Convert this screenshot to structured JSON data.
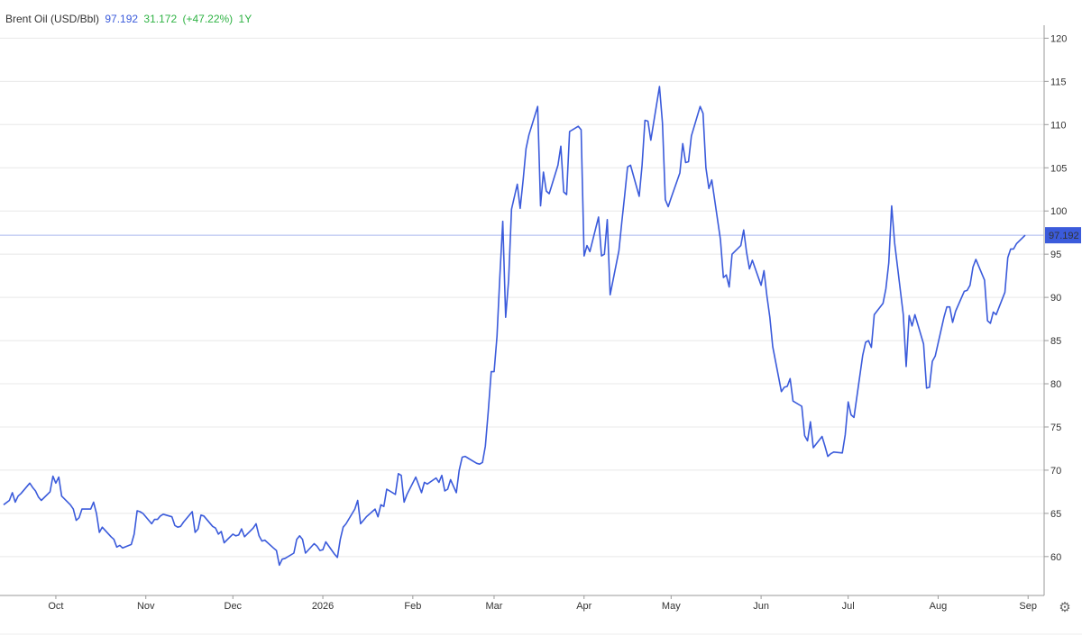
{
  "header": {
    "instrument": "Brent Oil (USD/Bbl)",
    "price": "97.192",
    "change": "31.172",
    "change_pct": "(+47.22%)",
    "period": "1Y"
  },
  "colors": {
    "line": "#3b5bdb",
    "grid": "#e8e8e8",
    "change_positive": "#2fb344",
    "price_tag_bg": "#3b5bdb"
  },
  "settings_icon": "gear-icon",
  "chart_data": {
    "type": "line",
    "title": "Brent Oil (USD/Bbl)",
    "xlabel": "",
    "ylabel": "",
    "ylim": [
      55.5,
      121.5
    ],
    "yticks": [
      60,
      65,
      70,
      75,
      80,
      85,
      90,
      95,
      100,
      105,
      110,
      115,
      120
    ],
    "x_ticks": [
      {
        "label": "Oct",
        "date": "2025-10-01"
      },
      {
        "label": "Nov",
        "date": "2025-11-01"
      },
      {
        "label": "Dec",
        "date": "2025-12-01"
      },
      {
        "label": "2026",
        "date": "2026-01-01"
      },
      {
        "label": "Feb",
        "date": "2026-02-01"
      },
      {
        "label": "Mar",
        "date": "2026-03-01"
      },
      {
        "label": "Apr",
        "date": "2026-04-01"
      },
      {
        "label": "May",
        "date": "2026-05-01"
      },
      {
        "label": "Jun",
        "date": "2026-06-01"
      },
      {
        "label": "Jul",
        "date": "2026-07-01"
      },
      {
        "label": "Aug",
        "date": "2026-08-01"
      },
      {
        "label": "Sep",
        "date": "2026-09-01"
      }
    ],
    "grid": true,
    "last_value": 97.192,
    "series": [
      {
        "points": [
          [
            "2025-09-13",
            66.0
          ],
          [
            "2025-09-15",
            66.5
          ],
          [
            "2025-09-16",
            67.4
          ],
          [
            "2025-09-17",
            66.3
          ],
          [
            "2025-09-18",
            67.0
          ],
          [
            "2025-09-19",
            67.3
          ],
          [
            "2025-09-22",
            68.5
          ],
          [
            "2025-09-23",
            68.0
          ],
          [
            "2025-09-24",
            67.6
          ],
          [
            "2025-09-25",
            66.9
          ],
          [
            "2025-09-26",
            66.5
          ],
          [
            "2025-09-29",
            67.5
          ],
          [
            "2025-09-30",
            69.3
          ],
          [
            "2025-10-01",
            68.5
          ],
          [
            "2025-10-02",
            69.2
          ],
          [
            "2025-10-03",
            67.0
          ],
          [
            "2025-10-06",
            66.0
          ],
          [
            "2025-10-07",
            65.5
          ],
          [
            "2025-10-08",
            64.2
          ],
          [
            "2025-10-09",
            64.5
          ],
          [
            "2025-10-10",
            65.5
          ],
          [
            "2025-10-13",
            65.5
          ],
          [
            "2025-10-14",
            66.3
          ],
          [
            "2025-10-15",
            65.0
          ],
          [
            "2025-10-16",
            62.8
          ],
          [
            "2025-10-17",
            63.4
          ],
          [
            "2025-10-20",
            62.3
          ],
          [
            "2025-10-21",
            62.0
          ],
          [
            "2025-10-22",
            61.1
          ],
          [
            "2025-10-23",
            61.3
          ],
          [
            "2025-10-24",
            61.0
          ],
          [
            "2025-10-27",
            61.4
          ],
          [
            "2025-10-28",
            62.6
          ],
          [
            "2025-10-29",
            65.3
          ],
          [
            "2025-10-30",
            65.2
          ],
          [
            "2025-10-31",
            65.0
          ],
          [
            "2025-11-03",
            63.8
          ],
          [
            "2025-11-04",
            64.3
          ],
          [
            "2025-11-05",
            64.3
          ],
          [
            "2025-11-06",
            64.7
          ],
          [
            "2025-11-07",
            64.9
          ],
          [
            "2025-11-10",
            64.6
          ],
          [
            "2025-11-11",
            63.6
          ],
          [
            "2025-11-12",
            63.4
          ],
          [
            "2025-11-13",
            63.5
          ],
          [
            "2025-11-14",
            64.0
          ],
          [
            "2025-11-17",
            65.2
          ],
          [
            "2025-11-18",
            62.8
          ],
          [
            "2025-11-19",
            63.2
          ],
          [
            "2025-11-20",
            64.8
          ],
          [
            "2025-11-21",
            64.7
          ],
          [
            "2025-11-24",
            63.5
          ],
          [
            "2025-11-25",
            63.3
          ],
          [
            "2025-11-26",
            62.6
          ],
          [
            "2025-11-27",
            62.9
          ],
          [
            "2025-11-28",
            61.6
          ],
          [
            "2025-12-01",
            62.6
          ],
          [
            "2025-12-02",
            62.4
          ],
          [
            "2025-12-03",
            62.5
          ],
          [
            "2025-12-04",
            63.2
          ],
          [
            "2025-12-05",
            62.3
          ],
          [
            "2025-12-08",
            63.3
          ],
          [
            "2025-12-09",
            63.8
          ],
          [
            "2025-12-10",
            62.4
          ],
          [
            "2025-12-11",
            61.8
          ],
          [
            "2025-12-12",
            61.9
          ],
          [
            "2025-12-15",
            61.0
          ],
          [
            "2025-12-16",
            60.7
          ],
          [
            "2025-12-17",
            59.0
          ],
          [
            "2025-12-18",
            59.7
          ],
          [
            "2025-12-19",
            59.8
          ],
          [
            "2025-12-22",
            60.4
          ],
          [
            "2025-12-23",
            62.0
          ],
          [
            "2025-12-24",
            62.4
          ],
          [
            "2025-12-25",
            62.0
          ],
          [
            "2025-12-26",
            60.4
          ],
          [
            "2025-12-29",
            61.5
          ],
          [
            "2025-12-30",
            61.2
          ],
          [
            "2025-12-31",
            60.7
          ],
          [
            "2026-01-01",
            60.8
          ],
          [
            "2026-01-02",
            61.7
          ],
          [
            "2026-01-05",
            60.3
          ],
          [
            "2026-01-06",
            59.9
          ],
          [
            "2026-01-07",
            62.0
          ],
          [
            "2026-01-08",
            63.4
          ],
          [
            "2026-01-09",
            63.8
          ],
          [
            "2026-01-12",
            65.5
          ],
          [
            "2026-01-13",
            66.5
          ],
          [
            "2026-01-14",
            63.8
          ],
          [
            "2026-01-15",
            64.2
          ],
          [
            "2026-01-16",
            64.6
          ],
          [
            "2026-01-19",
            65.5
          ],
          [
            "2026-01-20",
            64.6
          ],
          [
            "2026-01-21",
            66.0
          ],
          [
            "2026-01-22",
            65.8
          ],
          [
            "2026-01-23",
            67.8
          ],
          [
            "2026-01-26",
            67.2
          ],
          [
            "2026-01-27",
            69.6
          ],
          [
            "2026-01-28",
            69.4
          ],
          [
            "2026-01-29",
            66.3
          ],
          [
            "2026-01-30",
            67.2
          ],
          [
            "2026-02-02",
            69.2
          ],
          [
            "2026-02-03",
            68.3
          ],
          [
            "2026-02-04",
            67.4
          ],
          [
            "2026-02-05",
            68.6
          ],
          [
            "2026-02-06",
            68.4
          ],
          [
            "2026-02-09",
            69.1
          ],
          [
            "2026-02-10",
            68.6
          ],
          [
            "2026-02-11",
            69.4
          ],
          [
            "2026-02-12",
            67.6
          ],
          [
            "2026-02-13",
            67.8
          ],
          [
            "2026-02-14",
            68.9
          ],
          [
            "2026-02-16",
            67.4
          ],
          [
            "2026-02-17",
            70.0
          ],
          [
            "2026-02-18",
            71.5
          ],
          [
            "2026-02-19",
            71.6
          ],
          [
            "2026-02-20",
            71.4
          ],
          [
            "2026-02-23",
            70.8
          ],
          [
            "2026-02-24",
            70.7
          ],
          [
            "2026-02-25",
            70.9
          ],
          [
            "2026-02-26",
            72.8
          ],
          [
            "2026-02-27",
            76.8
          ],
          [
            "2026-02-28",
            81.4
          ],
          [
            "2026-03-01",
            81.4
          ],
          [
            "2026-03-02",
            85.5
          ],
          [
            "2026-03-03",
            92.5
          ],
          [
            "2026-03-04",
            98.8
          ],
          [
            "2026-03-05",
            87.7
          ],
          [
            "2026-03-06",
            92.0
          ],
          [
            "2026-03-07",
            100.2
          ],
          [
            "2026-03-09",
            103.1
          ],
          [
            "2026-03-10",
            100.3
          ],
          [
            "2026-03-11",
            103.6
          ],
          [
            "2026-03-12",
            107.2
          ],
          [
            "2026-03-13",
            108.8
          ],
          [
            "2026-03-16",
            112.1
          ],
          [
            "2026-03-17",
            100.6
          ],
          [
            "2026-03-18",
            104.5
          ],
          [
            "2026-03-19",
            102.3
          ],
          [
            "2026-03-20",
            102.0
          ],
          [
            "2026-03-23",
            105.3
          ],
          [
            "2026-03-24",
            107.5
          ],
          [
            "2026-03-25",
            102.2
          ],
          [
            "2026-03-26",
            101.9
          ],
          [
            "2026-03-27",
            109.2
          ],
          [
            "2026-03-30",
            109.8
          ],
          [
            "2026-03-31",
            109.4
          ],
          [
            "2026-04-01",
            94.8
          ],
          [
            "2026-04-02",
            96.0
          ],
          [
            "2026-04-03",
            95.3
          ],
          [
            "2026-04-06",
            99.3
          ],
          [
            "2026-04-07",
            94.8
          ],
          [
            "2026-04-08",
            95.0
          ],
          [
            "2026-04-09",
            99.0
          ],
          [
            "2026-04-10",
            90.3
          ],
          [
            "2026-04-13",
            95.4
          ],
          [
            "2026-04-14",
            98.7
          ],
          [
            "2026-04-15",
            101.8
          ],
          [
            "2026-04-16",
            105.1
          ],
          [
            "2026-04-17",
            105.3
          ],
          [
            "2026-04-20",
            101.7
          ],
          [
            "2026-04-21",
            105.3
          ],
          [
            "2026-04-22",
            110.5
          ],
          [
            "2026-04-23",
            110.4
          ],
          [
            "2026-04-24",
            108.2
          ],
          [
            "2026-04-27",
            114.4
          ],
          [
            "2026-04-28",
            110.2
          ],
          [
            "2026-04-29",
            101.3
          ],
          [
            "2026-04-30",
            100.5
          ],
          [
            "2026-05-01",
            101.5
          ],
          [
            "2026-05-04",
            104.4
          ],
          [
            "2026-05-05",
            107.8
          ],
          [
            "2026-05-06",
            105.6
          ],
          [
            "2026-05-07",
            105.7
          ],
          [
            "2026-05-08",
            108.7
          ],
          [
            "2026-05-11",
            112.1
          ],
          [
            "2026-05-12",
            111.3
          ],
          [
            "2026-05-13",
            105.0
          ],
          [
            "2026-05-14",
            102.6
          ],
          [
            "2026-05-15",
            103.6
          ],
          [
            "2026-05-18",
            96.7
          ],
          [
            "2026-05-19",
            92.3
          ],
          [
            "2026-05-20",
            92.6
          ],
          [
            "2026-05-21",
            91.2
          ],
          [
            "2026-05-22",
            95.0
          ],
          [
            "2026-05-25",
            96.0
          ],
          [
            "2026-05-26",
            97.8
          ],
          [
            "2026-05-27",
            95.2
          ],
          [
            "2026-05-28",
            93.3
          ],
          [
            "2026-05-29",
            94.3
          ],
          [
            "2026-06-01",
            91.4
          ],
          [
            "2026-06-02",
            93.1
          ],
          [
            "2026-06-03",
            90.2
          ],
          [
            "2026-06-04",
            87.7
          ],
          [
            "2026-06-05",
            84.3
          ],
          [
            "2026-06-08",
            79.1
          ],
          [
            "2026-06-09",
            79.6
          ],
          [
            "2026-06-10",
            79.7
          ],
          [
            "2026-06-11",
            80.6
          ],
          [
            "2026-06-12",
            78.0
          ],
          [
            "2026-06-15",
            77.4
          ],
          [
            "2026-06-16",
            74.0
          ],
          [
            "2026-06-17",
            73.4
          ],
          [
            "2026-06-18",
            75.6
          ],
          [
            "2026-06-19",
            72.6
          ],
          [
            "2026-06-22",
            73.9
          ],
          [
            "2026-06-23",
            72.8
          ],
          [
            "2026-06-24",
            71.6
          ],
          [
            "2026-06-25",
            71.9
          ],
          [
            "2026-06-26",
            72.1
          ],
          [
            "2026-06-29",
            72.0
          ],
          [
            "2026-06-30",
            74.1
          ],
          [
            "2026-07-01",
            77.9
          ],
          [
            "2026-07-02",
            76.4
          ],
          [
            "2026-07-03",
            76.1
          ],
          [
            "2026-07-06",
            83.3
          ],
          [
            "2026-07-07",
            84.8
          ],
          [
            "2026-07-08",
            85.0
          ],
          [
            "2026-07-09",
            84.2
          ],
          [
            "2026-07-10",
            88.0
          ],
          [
            "2026-07-13",
            89.3
          ],
          [
            "2026-07-14",
            91.0
          ],
          [
            "2026-07-15",
            94.0
          ],
          [
            "2026-07-16",
            100.6
          ],
          [
            "2026-07-17",
            96.3
          ],
          [
            "2026-07-20",
            88.0
          ],
          [
            "2026-07-21",
            82.0
          ],
          [
            "2026-07-22",
            87.9
          ],
          [
            "2026-07-23",
            86.7
          ],
          [
            "2026-07-24",
            88.0
          ],
          [
            "2026-07-27",
            84.6
          ],
          [
            "2026-07-28",
            79.5
          ],
          [
            "2026-07-29",
            79.6
          ],
          [
            "2026-07-30",
            82.6
          ],
          [
            "2026-07-31",
            83.2
          ],
          [
            "2026-08-03",
            87.7
          ],
          [
            "2026-08-04",
            88.9
          ],
          [
            "2026-08-05",
            88.9
          ],
          [
            "2026-08-06",
            87.1
          ],
          [
            "2026-08-07",
            88.4
          ],
          [
            "2026-08-10",
            90.7
          ],
          [
            "2026-08-11",
            90.8
          ],
          [
            "2026-08-12",
            91.4
          ],
          [
            "2026-08-13",
            93.5
          ],
          [
            "2026-08-14",
            94.4
          ],
          [
            "2026-08-17",
            92.0
          ],
          [
            "2026-08-18",
            87.3
          ],
          [
            "2026-08-19",
            87.0
          ],
          [
            "2026-08-20",
            88.3
          ],
          [
            "2026-08-21",
            88.0
          ],
          [
            "2026-08-24",
            90.6
          ],
          [
            "2026-08-25",
            94.6
          ],
          [
            "2026-08-26",
            95.6
          ],
          [
            "2026-08-27",
            95.6
          ],
          [
            "2026-08-28",
            96.2
          ],
          [
            "2026-08-31",
            97.192
          ]
        ]
      }
    ]
  }
}
